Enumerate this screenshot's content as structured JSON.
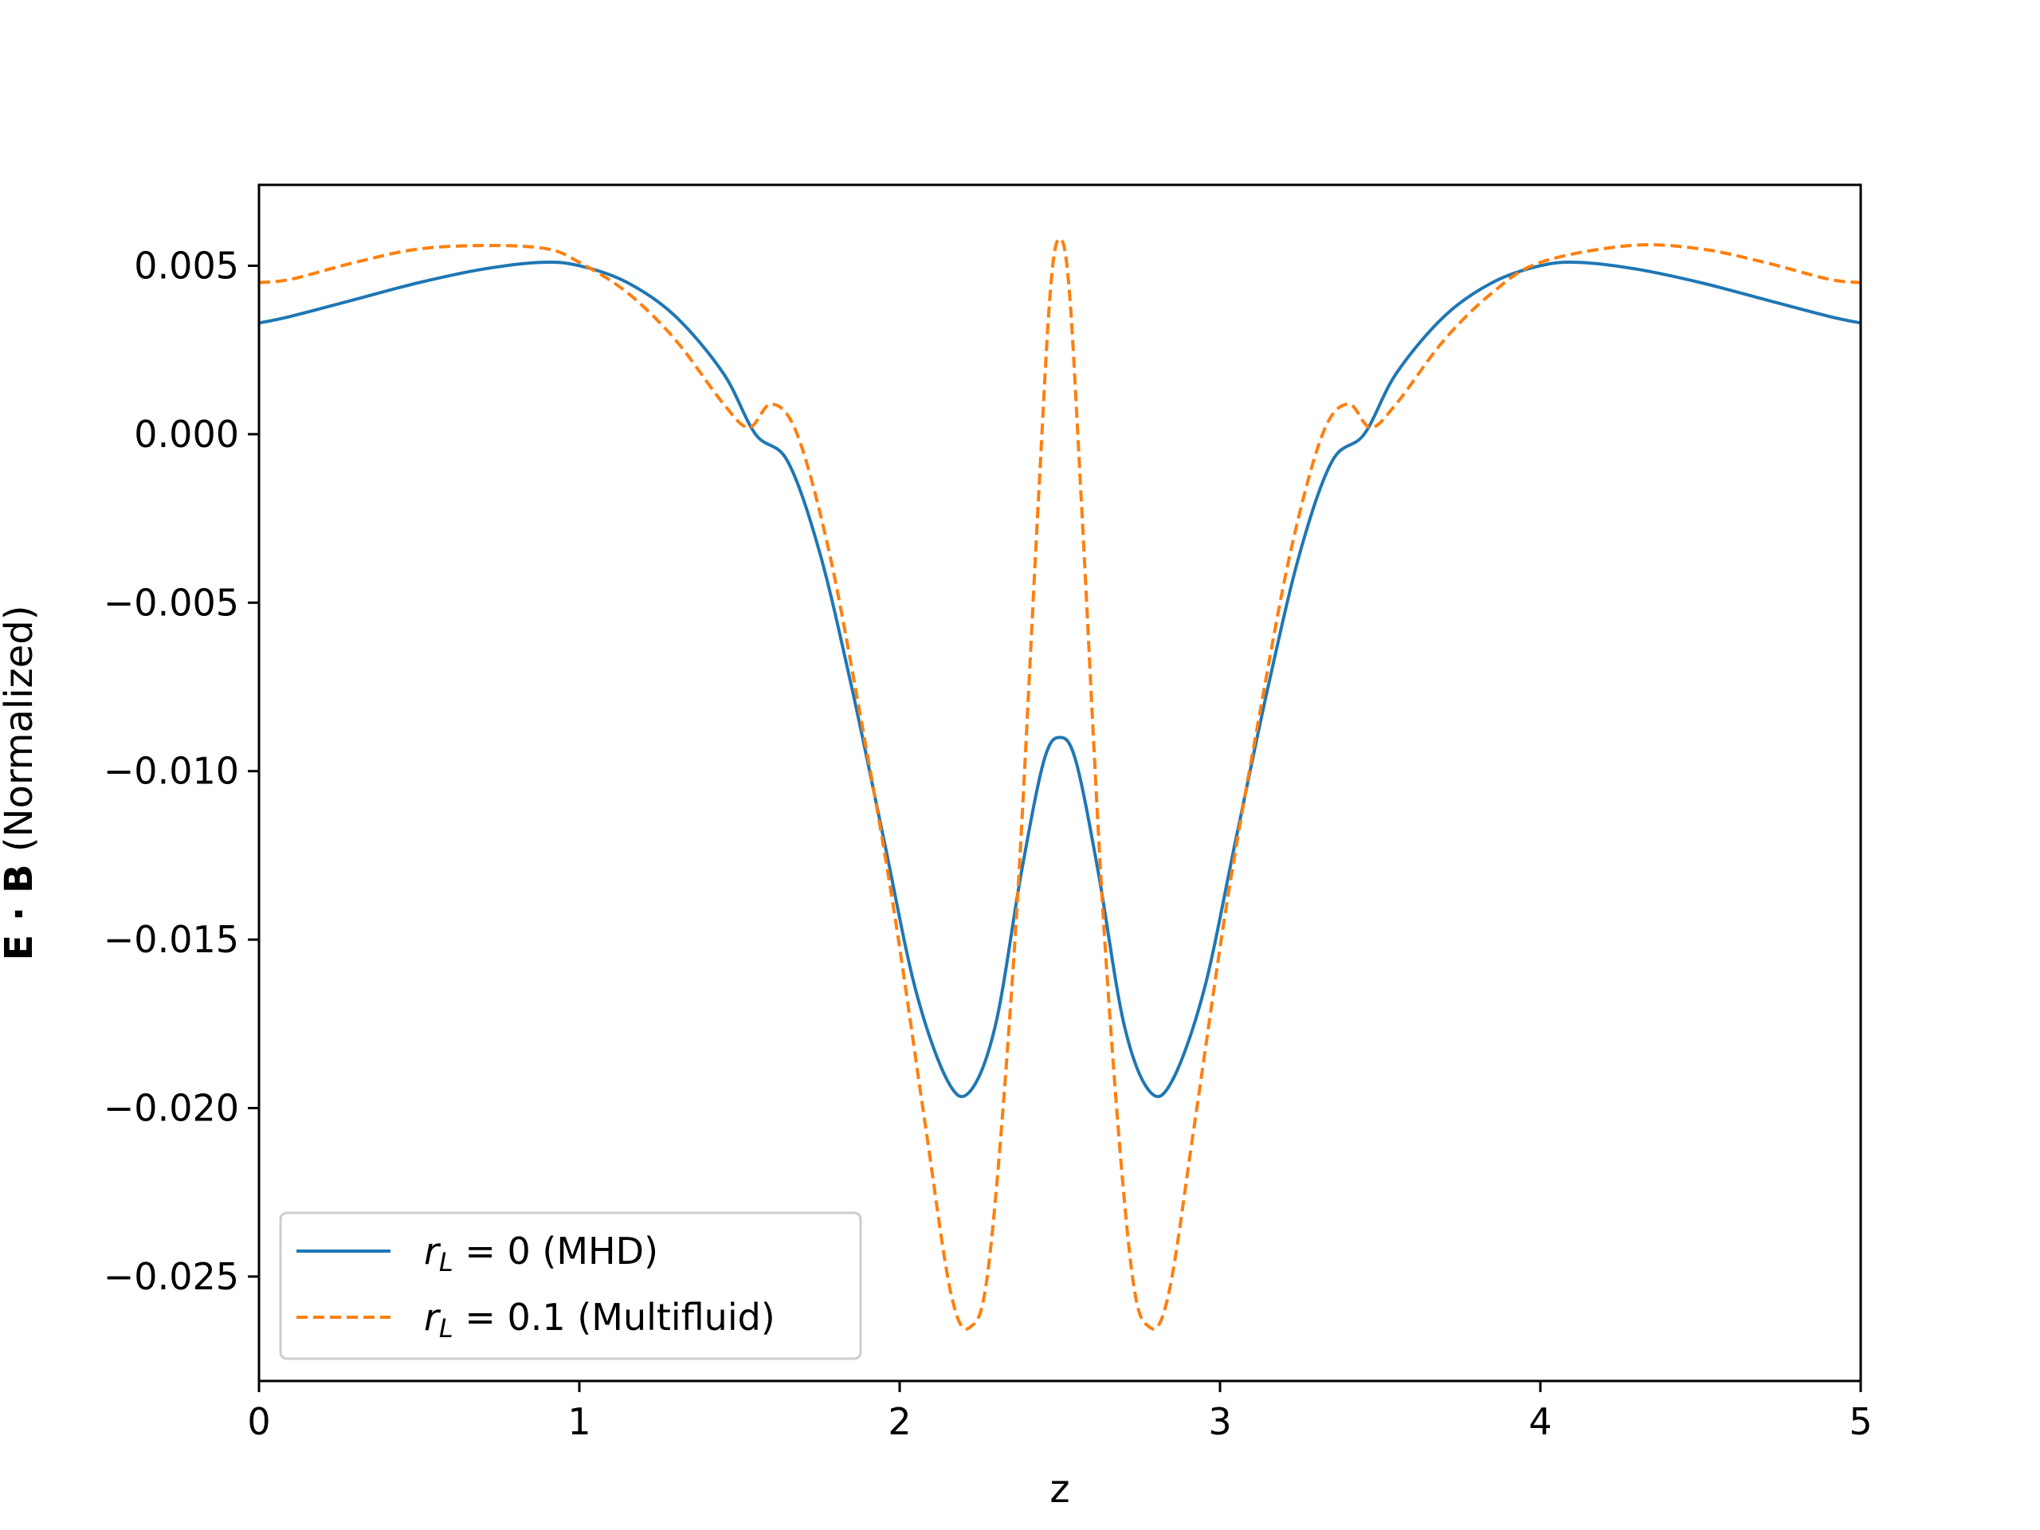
{
  "chart_data": {
    "type": "line",
    "xlabel": "z",
    "ylabel": {
      "bold": "E · B",
      "rest": " (Normalized)"
    },
    "xlim": [
      0,
      5
    ],
    "ylim": [
      -0.0281,
      0.0074
    ],
    "xticks": [
      0,
      1,
      2,
      3,
      4,
      5
    ],
    "xtick_labels": [
      "0",
      "1",
      "2",
      "3",
      "4",
      "5"
    ],
    "yticks": [
      0.005,
      0.0,
      -0.005,
      -0.01,
      -0.015,
      -0.02,
      -0.025
    ],
    "ytick_labels": [
      "0.005",
      "0.000",
      "−0.005",
      "−0.010",
      "−0.015",
      "−0.020",
      "−0.025"
    ],
    "grid": false,
    "legend_placement": "lower-left",
    "series": [
      {
        "name": "r_L = 0 (MHD)",
        "legend": {
          "var": "r",
          "sub": "L",
          "eq": " = 0 (MHD)"
        },
        "color": "#1f77b4",
        "style": "solid",
        "x": [
          0,
          0.1,
          0.3,
          0.5,
          0.7,
          0.88,
          1.0,
          1.15,
          1.3,
          1.45,
          1.55,
          1.65,
          1.75,
          1.85,
          1.95,
          2.05,
          2.15,
          2.22,
          2.3,
          2.38,
          2.45,
          2.5,
          2.55,
          2.62,
          2.7,
          2.78,
          2.85,
          2.95,
          3.05,
          3.15,
          3.25,
          3.35,
          3.45,
          3.55,
          3.7,
          3.85,
          4.0,
          4.12,
          4.3,
          4.5,
          4.7,
          4.9,
          5.0
        ],
        "y": [
          0.0033,
          0.0035,
          0.004,
          0.0045,
          0.0049,
          0.0051,
          0.005,
          0.0045,
          0.0035,
          0.0018,
          0.0,
          -0.0008,
          -0.0035,
          -0.0075,
          -0.012,
          -0.0165,
          -0.0192,
          -0.0195,
          -0.0175,
          -0.013,
          -0.0097,
          -0.009,
          -0.0097,
          -0.013,
          -0.0175,
          -0.0195,
          -0.0192,
          -0.0165,
          -0.012,
          -0.0075,
          -0.0035,
          -0.0008,
          0.0,
          0.0018,
          0.0035,
          0.0045,
          0.005,
          0.0051,
          0.0049,
          0.0045,
          0.004,
          0.0035,
          0.0033
        ]
      },
      {
        "name": "r_L = 0.1 (Multifluid)",
        "legend": {
          "var": "r",
          "sub": "L",
          "eq": " = 0.1 (Multifluid)"
        },
        "color": "#ff7f0e",
        "style": "dashed",
        "x": [
          0,
          0.1,
          0.3,
          0.5,
          0.72,
          0.9,
          1.0,
          1.15,
          1.3,
          1.45,
          1.53,
          1.6,
          1.68,
          1.78,
          1.88,
          1.98,
          2.08,
          2.16,
          2.22,
          2.28,
          2.36,
          2.43,
          2.47,
          2.5,
          2.53,
          2.57,
          2.64,
          2.72,
          2.78,
          2.84,
          2.92,
          3.02,
          3.12,
          3.22,
          3.32,
          3.4,
          3.47,
          3.55,
          3.7,
          3.85,
          4.0,
          4.28,
          4.5,
          4.7,
          4.9,
          5.0
        ],
        "y": [
          0.0045,
          0.0046,
          0.0051,
          0.0055,
          0.0056,
          0.0055,
          0.0051,
          0.0042,
          0.0028,
          0.0009,
          0.0002,
          0.0009,
          0.0,
          -0.0035,
          -0.0085,
          -0.014,
          -0.0205,
          -0.0255,
          -0.0265,
          -0.0245,
          -0.015,
          -0.0025,
          0.0042,
          0.0058,
          0.0042,
          -0.0025,
          -0.015,
          -0.0245,
          -0.0265,
          -0.0255,
          -0.0205,
          -0.014,
          -0.0085,
          -0.0035,
          0.0,
          0.0009,
          0.0002,
          0.0009,
          0.0028,
          0.0042,
          0.0051,
          0.0056,
          0.0055,
          0.0051,
          0.0046,
          0.0045
        ]
      }
    ]
  }
}
